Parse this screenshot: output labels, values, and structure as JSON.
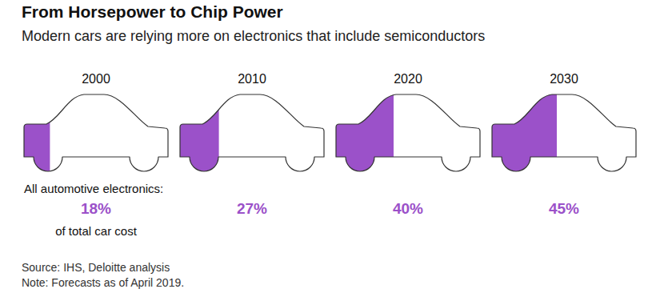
{
  "chart_data": {
    "type": "pictogram",
    "title": "From Horsepower to Chip Power",
    "subtitle": "Modern cars are relying more on electronics that include semiconductors",
    "categories": [
      "2000",
      "2010",
      "2020",
      "2030"
    ],
    "values": [
      18,
      27,
      40,
      45
    ],
    "value_labels": [
      "18%",
      "27%",
      "40%",
      "45%"
    ],
    "data_labels": true,
    "color": "#9b51c9",
    "xlim": [
      0,
      100
    ],
    "tick_labels": false,
    "annotations": [
      "All automotive electronics:",
      "of total car cost"
    ],
    "source": "Source: IHS, Deloitte analysis",
    "note": "Note: Forecasts as of April 2019."
  }
}
